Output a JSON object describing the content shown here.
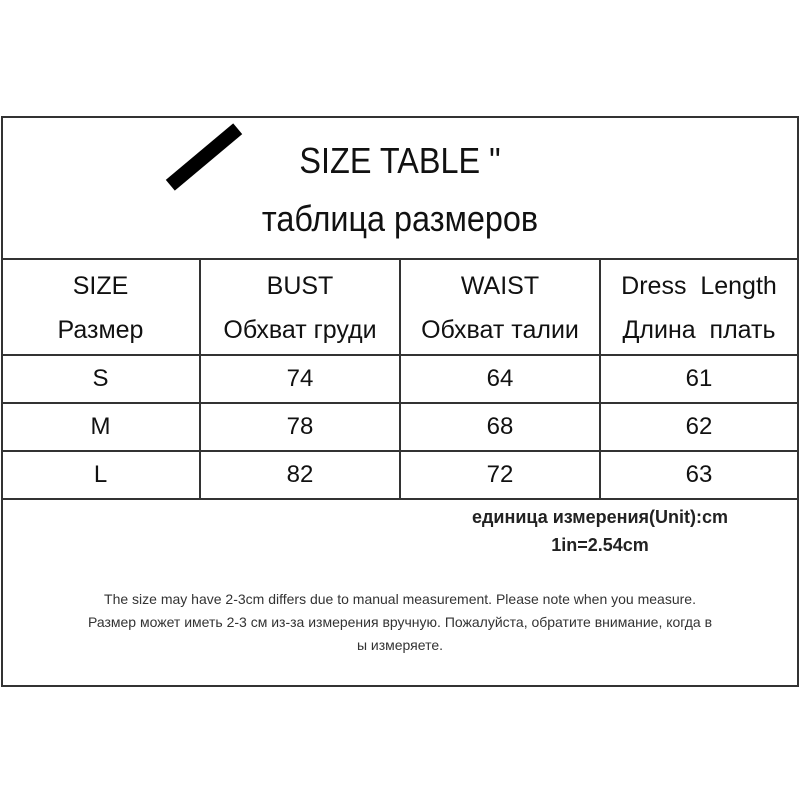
{
  "title": {
    "en": "SIZE TABLE \"",
    "ru": "таблица размеров"
  },
  "table": {
    "headers": [
      {
        "en": "SIZE",
        "ru": "Размер"
      },
      {
        "en": "BUST",
        "ru": "Обхват груди"
      },
      {
        "en": "WAIST",
        "ru": "Обхват талии"
      },
      {
        "en": "Dress  Length",
        "ru": "Длина  плать"
      }
    ],
    "rows": [
      [
        "S",
        "74",
        "64",
        "61"
      ],
      [
        "M",
        "78",
        "68",
        "62"
      ],
      [
        "L",
        "82",
        "72",
        "63"
      ]
    ]
  },
  "unit": {
    "line1": "единица измерения(Unit):cm",
    "line2": "1in=2.54cm"
  },
  "notes": [
    "The size may have 2-3cm differs due to manual measurement. Please note when you measure.",
    "Размер может иметь 2-3 см из-за измерения вручную. Пожалуйста, обратите внимание, когда в",
    "ы измеряете."
  ]
}
